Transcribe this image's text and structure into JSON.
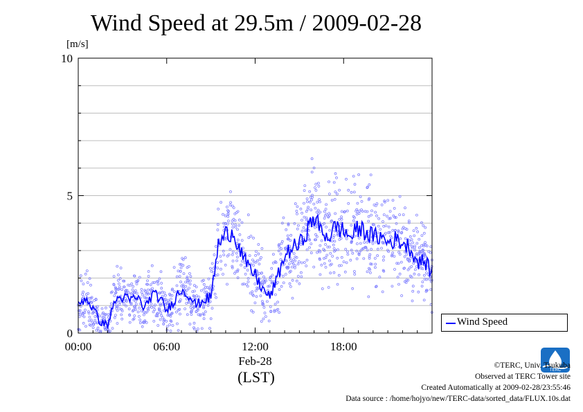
{
  "title": "Wind Speed at 29.5m / 2009-02-28",
  "unit_label": "[m/s]",
  "x_axis_title": "(LST)",
  "legend": {
    "label": "Wind Speed"
  },
  "logo_text": "TERC",
  "credits": {
    "line1": "©TERC, Univ. Tsukuba",
    "line2": "Observed at TERC Tower site",
    "line3": "Created Automatically at 2009-02-28/23:55:46",
    "line4": "Data source : /home/hojyo/new/TERC-data/sorted_data/FLUX.10s.dat"
  },
  "colors": {
    "line": "#0000ff",
    "points": "#8080ff",
    "grid": "#bdbdbd"
  },
  "chart_data": {
    "type": "line",
    "title": "Wind Speed at 29.5m / 2009-02-28",
    "ylabel": "[m/s]",
    "xlabel": "(LST)",
    "ylim": [
      0,
      10
    ],
    "xlim_hours": [
      0,
      24
    ],
    "x_ticks": [
      {
        "hour": 0,
        "label": "00:00"
      },
      {
        "hour": 6,
        "label": "06:00"
      },
      {
        "hour": 12,
        "label": "12:00"
      },
      {
        "hour": 18,
        "label": "18:00"
      }
    ],
    "x_sublabel": {
      "hour": 12,
      "label": "Feb-28"
    },
    "y_ticks": [
      {
        "value": 0,
        "label": "0"
      },
      {
        "value": 5,
        "label": "5"
      },
      {
        "value": 10,
        "label": "10"
      }
    ],
    "grid": true,
    "legend_position": "bottom-right",
    "series": [
      {
        "name": "Wind Speed",
        "x_hours": [
          0,
          0.5,
          1,
          1.5,
          2,
          2.5,
          3,
          3.5,
          4,
          4.5,
          5,
          5.5,
          6,
          6.5,
          7,
          7.5,
          8,
          8.5,
          9,
          9.5,
          10,
          10.5,
          11,
          11.5,
          12,
          12.5,
          13,
          13.5,
          14,
          14.5,
          15,
          15.5,
          16,
          16.5,
          17,
          17.5,
          18,
          18.5,
          19,
          19.5,
          20,
          20.5,
          21,
          21.5,
          22,
          22.5,
          23,
          23.5,
          24
        ],
        "values": [
          1.0,
          1.3,
          0.9,
          0.4,
          0.3,
          1.2,
          1.3,
          1.2,
          1.3,
          0.9,
          1.4,
          1.3,
          0.8,
          1.2,
          1.6,
          1.4,
          1.0,
          1.2,
          1.3,
          3.2,
          3.6,
          3.7,
          3.0,
          2.4,
          2.1,
          1.6,
          1.3,
          2.0,
          2.8,
          3.1,
          3.2,
          3.7,
          4.2,
          3.7,
          3.5,
          3.9,
          3.7,
          3.5,
          3.8,
          3.7,
          3.5,
          3.5,
          3.3,
          3.4,
          3.3,
          3.1,
          2.6,
          2.6,
          2.2
        ]
      }
    ]
  }
}
